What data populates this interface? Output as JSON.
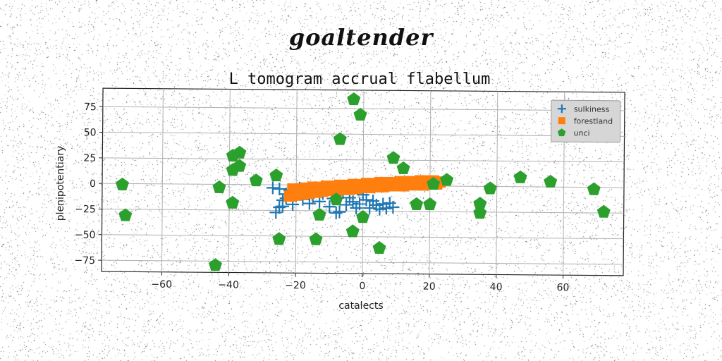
{
  "figure": {
    "suptitle": "goaltender"
  },
  "chart_data": {
    "type": "scatter",
    "title": "L tomogram accrual flabellum",
    "xlabel": "catalects",
    "ylabel": "plenipotentiary",
    "xlim": [
      -78,
      78
    ],
    "ylim": [
      -86,
      93
    ],
    "xticks": [
      -60,
      -40,
      -20,
      0,
      20,
      40,
      60
    ],
    "yticks": [
      -75,
      -50,
      -25,
      0,
      25,
      50,
      75
    ],
    "grid": true,
    "legend_position": "upper right",
    "series": [
      {
        "name": "sulkiness",
        "marker": "plus",
        "color": "#1f77b4",
        "points": [
          [
            -26,
            -27
          ],
          [
            -25,
            -22
          ],
          [
            -24,
            -15
          ],
          [
            -23,
            -9
          ],
          [
            -22,
            -5
          ],
          [
            -25,
            -4
          ],
          [
            -21,
            -19
          ],
          [
            -24,
            -21
          ],
          [
            -20,
            -10
          ],
          [
            -18,
            -14
          ],
          [
            -17,
            -6
          ],
          [
            -16,
            -18
          ],
          [
            -15,
            -11
          ],
          [
            -14,
            -4
          ],
          [
            -13,
            -16
          ],
          [
            -12,
            -8
          ],
          [
            -11,
            -2
          ],
          [
            -10,
            -21
          ],
          [
            -9,
            -13
          ],
          [
            -8,
            -27
          ],
          [
            -7,
            -26
          ],
          [
            -6,
            -7
          ],
          [
            -5,
            -19
          ],
          [
            -4,
            -12
          ],
          [
            -3,
            -16
          ],
          [
            -2,
            -22
          ],
          [
            -1,
            -18
          ],
          [
            0,
            -9
          ],
          [
            1,
            -14
          ],
          [
            2,
            -22
          ],
          [
            3,
            -15
          ],
          [
            4,
            -19
          ],
          [
            5,
            -23
          ],
          [
            6,
            -18
          ],
          [
            7,
            -22
          ],
          [
            8,
            -17
          ],
          [
            9,
            -21
          ],
          [
            -27,
            -3
          ],
          [
            -19,
            -3
          ],
          [
            -23,
            -13
          ]
        ]
      },
      {
        "name": "forestland",
        "marker": "square",
        "color": "#ff7f0e",
        "points": [
          [
            -22,
            -11
          ],
          [
            -21,
            -4
          ],
          [
            -20,
            -10
          ],
          [
            -19,
            -4
          ],
          [
            -18,
            -9
          ],
          [
            -17,
            -3
          ],
          [
            -16,
            -8
          ],
          [
            -15,
            -2
          ],
          [
            -14,
            -7
          ],
          [
            -13,
            -2
          ],
          [
            -12,
            -6
          ],
          [
            -11,
            -1
          ],
          [
            -10,
            -5
          ],
          [
            -9,
            -1
          ],
          [
            -8,
            -5
          ],
          [
            -7,
            0
          ],
          [
            -6,
            -4
          ],
          [
            -5,
            0
          ],
          [
            -4,
            -4
          ],
          [
            -3,
            1
          ],
          [
            -2,
            -3
          ],
          [
            -1,
            1
          ],
          [
            0,
            -2
          ],
          [
            1,
            2
          ],
          [
            2,
            -2
          ],
          [
            3,
            2
          ],
          [
            4,
            -1
          ],
          [
            5,
            3
          ],
          [
            6,
            -1
          ],
          [
            7,
            3
          ],
          [
            8,
            0
          ],
          [
            9,
            3
          ],
          [
            10,
            0
          ],
          [
            11,
            4
          ],
          [
            12,
            0
          ],
          [
            13,
            4
          ],
          [
            14,
            1
          ],
          [
            15,
            4
          ],
          [
            16,
            1
          ],
          [
            17,
            5
          ],
          [
            18,
            1
          ],
          [
            19,
            5
          ],
          [
            20,
            2
          ],
          [
            21,
            5
          ],
          [
            22,
            2
          ],
          [
            23,
            4
          ]
        ]
      },
      {
        "name": "unci",
        "marker": "pentagon",
        "color": "#2ca02c",
        "points": [
          [
            -72,
            -1
          ],
          [
            -71,
            -31
          ],
          [
            -44,
            -79
          ],
          [
            -43,
            -3
          ],
          [
            -39,
            -18
          ],
          [
            -39,
            28
          ],
          [
            -39,
            14
          ],
          [
            -37,
            31
          ],
          [
            -37,
            18
          ],
          [
            -32,
            4
          ],
          [
            -26,
            9
          ],
          [
            -25,
            -53
          ],
          [
            -14,
            -53
          ],
          [
            -13,
            -29
          ],
          [
            -8,
            -14
          ],
          [
            -7,
            45
          ],
          [
            -3,
            -45
          ],
          [
            -3,
            84
          ],
          [
            -1,
            69
          ],
          [
            0,
            -31
          ],
          [
            5,
            -61
          ],
          [
            9,
            27
          ],
          [
            12,
            17
          ],
          [
            16,
            -18
          ],
          [
            20,
            -18
          ],
          [
            21,
            2
          ],
          [
            25,
            6
          ],
          [
            35,
            -17
          ],
          [
            35,
            -26
          ],
          [
            38,
            -2
          ],
          [
            47,
            9
          ],
          [
            56,
            5
          ],
          [
            69,
            -2
          ],
          [
            72,
            -24
          ]
        ]
      }
    ]
  }
}
